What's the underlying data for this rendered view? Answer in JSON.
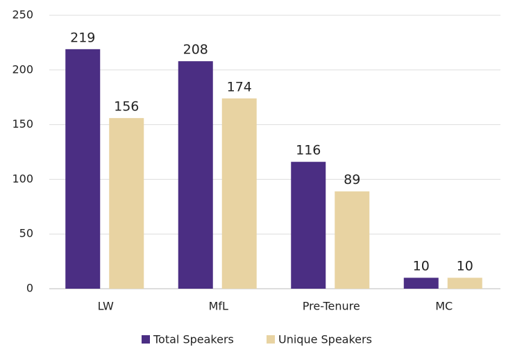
{
  "chart_data": {
    "type": "bar",
    "categories": [
      "LW",
      "MfL",
      "Pre-Tenure",
      "MC"
    ],
    "series": [
      {
        "name": "Total Speakers",
        "color": "#4b2e83",
        "values": [
          219,
          208,
          116,
          10
        ]
      },
      {
        "name": "Unique Speakers",
        "color": "#e8d3a2",
        "values": [
          156,
          174,
          89,
          10
        ]
      }
    ],
    "ylim": [
      0,
      250
    ],
    "yticks": [
      0,
      50,
      100,
      150,
      200,
      250
    ],
    "grid": true,
    "legend": "bottom"
  }
}
